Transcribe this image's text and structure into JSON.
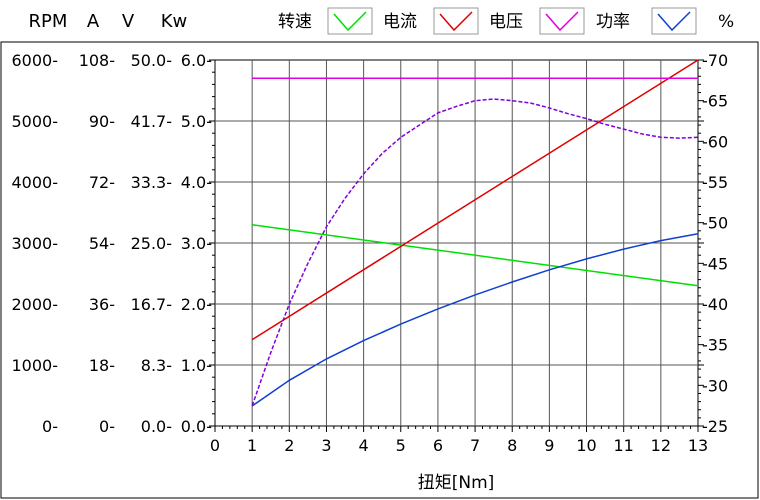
{
  "chart_data": {
    "type": "line",
    "xlabel": "扭矩[Nm]",
    "x_ticks": [
      0,
      1,
      2,
      3,
      4,
      5,
      6,
      7,
      8,
      9,
      10,
      11,
      12,
      13
    ],
    "xlim": [
      0,
      13
    ],
    "left_axes": [
      {
        "unit": "RPM",
        "ticks": [
          "6000",
          "5000",
          "4000",
          "3000",
          "2000",
          "1000",
          "0"
        ]
      },
      {
        "unit": "A",
        "ticks": [
          "108",
          "90",
          "72",
          "54",
          "36",
          "18",
          "0"
        ]
      },
      {
        "unit": "V",
        "ticks": [
          "50.0",
          "41.7",
          "33.3",
          "25.0",
          "16.7",
          "8.3",
          "0.0"
        ]
      },
      {
        "unit": "Kw",
        "ticks": [
          "6.0",
          "5.0",
          "4.0",
          "3.0",
          "2.0",
          "1.0",
          "0.0"
        ]
      }
    ],
    "right_axis": {
      "unit": "%",
      "ticks": [
        "70",
        "65",
        "60",
        "55",
        "50",
        "45",
        "40",
        "35",
        "30",
        "25"
      ],
      "ylim": [
        25,
        70
      ]
    },
    "legend": [
      {
        "label": "转速",
        "color": "#00e000"
      },
      {
        "label": "电流",
        "color": "#e00000"
      },
      {
        "label": "电压",
        "color": "#e000e0"
      },
      {
        "label": "功率",
        "color": "#1040d0"
      },
      {
        "label": "%",
        "color": "#000000"
      }
    ],
    "series": [
      {
        "label_ref": "转速",
        "axis": "RPM",
        "color": "#00e000",
        "x": [
          1,
          13
        ],
        "y": [
          3300,
          2300
        ]
      },
      {
        "label_ref": "电流",
        "axis": "A",
        "color": "#e00000",
        "x": [
          1,
          13
        ],
        "y": [
          25.5,
          108
        ]
      },
      {
        "label_ref": "电压",
        "axis": "V",
        "color": "#e000e0",
        "x": [
          1,
          13
        ],
        "y": [
          47.5,
          47.5
        ]
      },
      {
        "label_ref": "功率",
        "axis": "Kw",
        "color": "#1040d0",
        "x": [
          1,
          2,
          3,
          4,
          5,
          6,
          7,
          8,
          9,
          10,
          11,
          12,
          13
        ],
        "y": [
          0.33,
          0.75,
          1.1,
          1.4,
          1.67,
          1.92,
          2.15,
          2.36,
          2.56,
          2.74,
          2.9,
          3.04,
          3.15
        ]
      },
      {
        "label_ref": "%",
        "axis": "%",
        "color": "#8000e0",
        "dashed": true,
        "x": [
          1,
          1.5,
          2,
          2.5,
          3,
          3.5,
          4,
          4.5,
          5,
          5.5,
          6,
          6.5,
          7,
          7.5,
          8,
          8.5,
          9,
          9.5,
          10,
          10.5,
          11,
          11.5,
          12,
          12.5,
          13
        ],
        "y": [
          27.5,
          34,
          40,
          45,
          49.5,
          53,
          56,
          58.5,
          60.5,
          62,
          63.5,
          64.3,
          65,
          65.2,
          65,
          64.7,
          64.1,
          63.4,
          62.8,
          62.1,
          61.5,
          60.9,
          60.5,
          60.4,
          60.5
        ]
      }
    ]
  }
}
